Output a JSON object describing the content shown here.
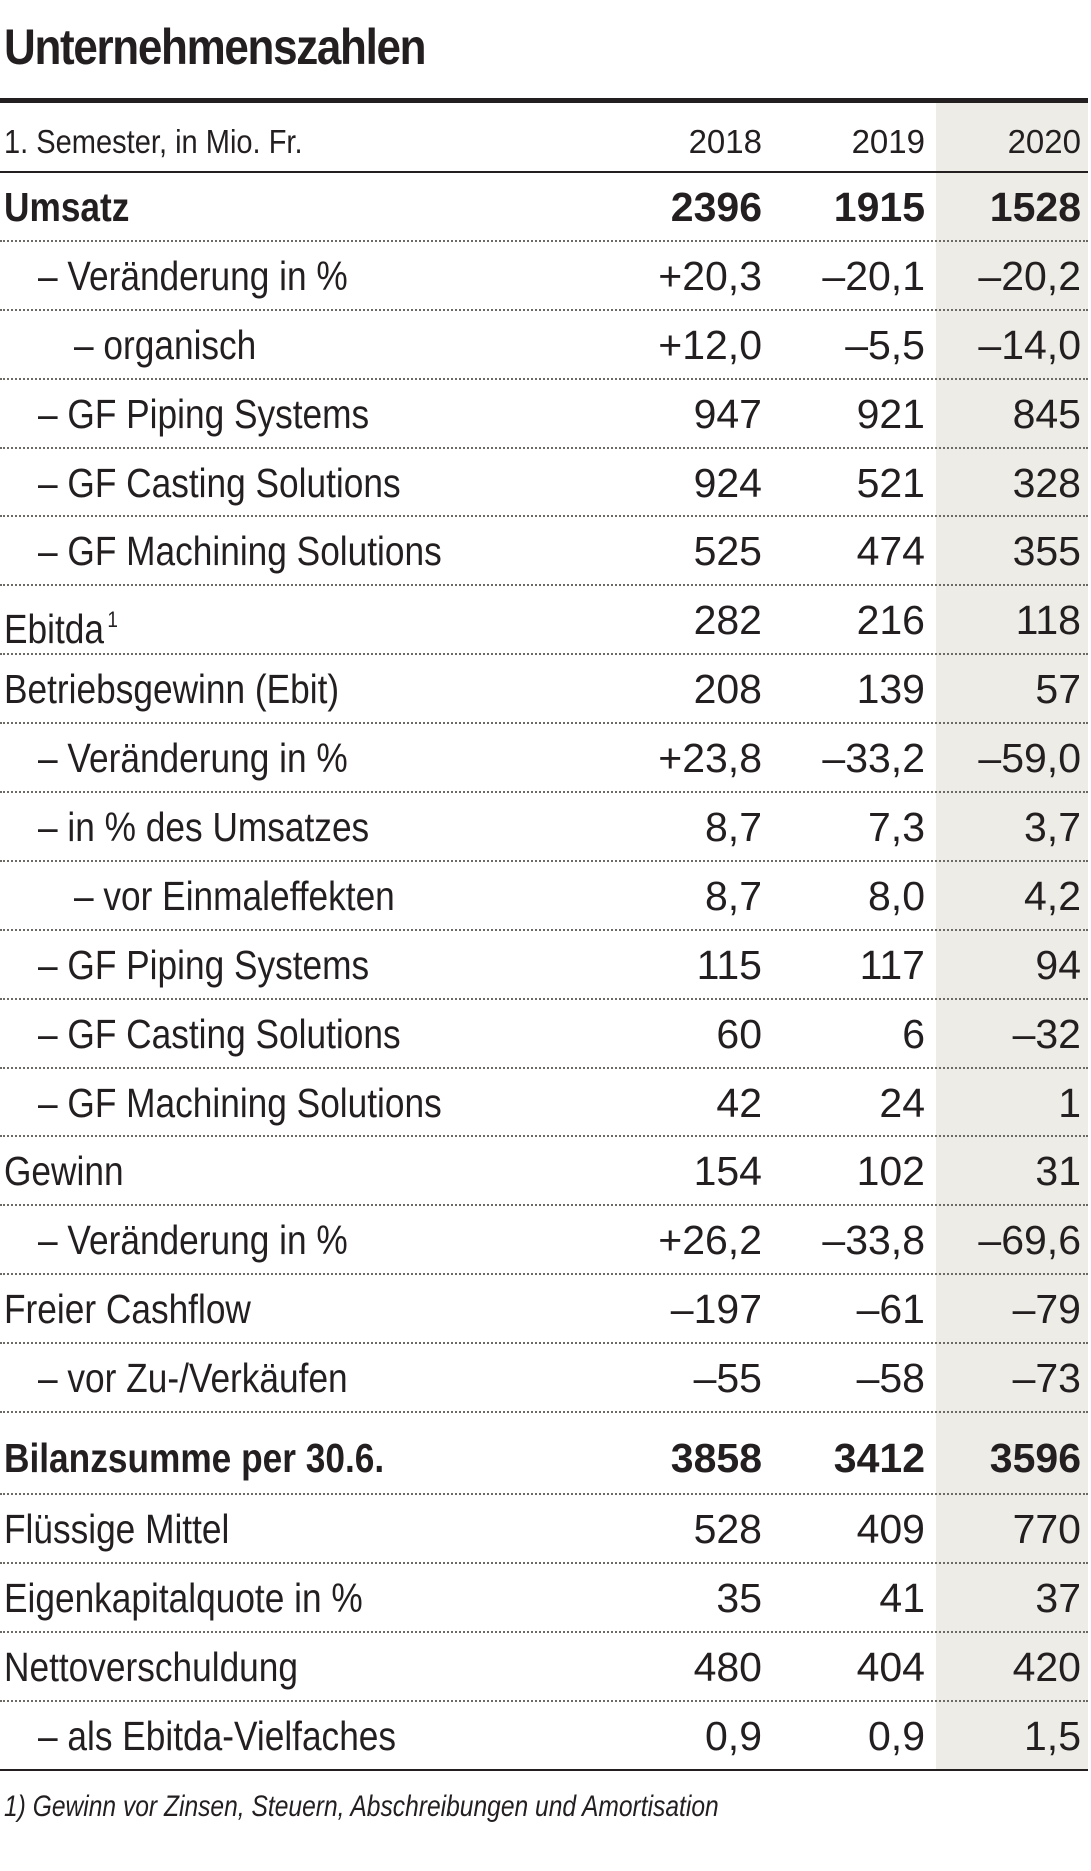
{
  "title": "Unternehmenszahlen",
  "header": {
    "label": "1. Semester, in Mio. Fr.",
    "years": [
      "2018",
      "2019",
      "2020"
    ]
  },
  "rows": [
    {
      "label": "Umsatz",
      "values": [
        "2396",
        "1915",
        "1528"
      ]
    },
    {
      "label": "– Veränderung in %",
      "values": [
        "+20,3",
        "–20,1",
        "–20,2"
      ]
    },
    {
      "label": "– organisch",
      "values": [
        "+12,0",
        "–5,5",
        "–14,0"
      ]
    },
    {
      "label": "– GF Piping Systems",
      "values": [
        "947",
        "921",
        "845"
      ]
    },
    {
      "label": "– GF Casting Solutions",
      "values": [
        "924",
        "521",
        "328"
      ]
    },
    {
      "label": "– GF Machining Solutions",
      "values": [
        "525",
        "474",
        "355"
      ]
    },
    {
      "label": "Ebitda",
      "sup": "1",
      "values": [
        "282",
        "216",
        "118"
      ]
    },
    {
      "label": "Betriebsgewinn (Ebit)",
      "values": [
        "208",
        "139",
        "57"
      ]
    },
    {
      "label": "– Veränderung in %",
      "values": [
        "+23,8",
        "–33,2",
        "–59,0"
      ]
    },
    {
      "label": "– in % des Umsatzes",
      "values": [
        "8,7",
        "7,3",
        "3,7"
      ]
    },
    {
      "label": "– vor Einmaleffekten",
      "values": [
        "8,7",
        "8,0",
        "4,2"
      ]
    },
    {
      "label": "– GF Piping Systems",
      "values": [
        "115",
        "117",
        "94"
      ]
    },
    {
      "label": "– GF Casting Solutions",
      "values": [
        "60",
        "6",
        "–32"
      ]
    },
    {
      "label": "– GF Machining Solutions",
      "values": [
        "42",
        "24",
        "1"
      ]
    },
    {
      "label": "Gewinn",
      "values": [
        "154",
        "102",
        "31"
      ]
    },
    {
      "label": "– Veränderung in %",
      "values": [
        "+26,2",
        "–33,8",
        "–69,6"
      ]
    },
    {
      "label": "Freier Cashflow",
      "values": [
        "–197",
        "–61",
        "–79"
      ]
    },
    {
      "label": "– vor Zu-/Verkäufen",
      "values": [
        "–55",
        "–58",
        "–73"
      ]
    },
    {
      "label": "Bilanzsumme per 30.6.",
      "values": [
        "3858",
        "3412",
        "3596"
      ]
    },
    {
      "label": "Flüssige Mittel",
      "values": [
        "528",
        "409",
        "770"
      ]
    },
    {
      "label": "Eigenkapitalquote in %",
      "values": [
        "35",
        "41",
        "37"
      ]
    },
    {
      "label": "Nettoverschuldung",
      "values": [
        "480",
        "404",
        "420"
      ]
    },
    {
      "label": "– als Ebitda-Vielfaches",
      "values": [
        "0,9",
        "0,9",
        "1,5"
      ]
    }
  ],
  "footnote": "1) Gewinn vor Zinsen, Steuern, Abschreibungen und Amortisation"
}
